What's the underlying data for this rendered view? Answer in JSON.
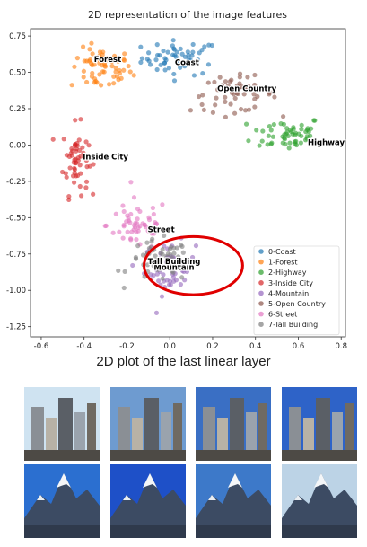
{
  "chart_data": {
    "type": "scatter",
    "title": "2D representation of the image features",
    "xlabel": "",
    "ylabel": "",
    "xlim": [
      -0.65,
      0.82
    ],
    "ylim": [
      -1.32,
      0.8
    ],
    "xticks": [
      "-0.6",
      "-0.4",
      "-0.2",
      "0.0",
      "0.2",
      "0.4",
      "0.6",
      "0.8"
    ],
    "xtick_values": [
      -0.6,
      -0.4,
      -0.2,
      0.0,
      0.2,
      0.4,
      0.6,
      0.8
    ],
    "yticks": [
      "0.75",
      "0.50",
      "0.25",
      "0.00",
      "-0.25",
      "-0.50",
      "-0.75",
      "-1.00",
      "-1.25"
    ],
    "ytick_values": [
      0.75,
      0.5,
      0.25,
      0.0,
      -0.25,
      -0.5,
      -0.75,
      -1.0,
      -1.25
    ],
    "grid": false,
    "legend_position": "bottom-right",
    "series": [
      {
        "name": "0-Coast",
        "color": "#1f77b4",
        "label": "Coast",
        "label_pos": [
          0.08,
          0.55
        ],
        "center": [
          0.05,
          0.6
        ],
        "spread": [
          0.15,
          0.1
        ],
        "n": 55
      },
      {
        "name": "1-Forest",
        "color": "#ff7f0e",
        "label": "Forest",
        "label_pos": [
          -0.29,
          0.57
        ],
        "center": [
          -0.32,
          0.52
        ],
        "spread": [
          0.12,
          0.12
        ],
        "n": 60
      },
      {
        "name": "2-Highway",
        "color": "#2ca02c",
        "label": "Highway",
        "label_pos": [
          0.73,
          0.0
        ],
        "center": [
          0.55,
          0.08
        ],
        "spread": [
          0.14,
          0.1
        ],
        "n": 55
      },
      {
        "name": "3-Inside City",
        "color": "#d62728",
        "label": "Inside City",
        "label_pos": [
          -0.3,
          -0.1
        ],
        "center": [
          -0.44,
          -0.1
        ],
        "spread": [
          0.05,
          0.2
        ],
        "n": 55
      },
      {
        "name": "4-Mountain",
        "color": "#9467bd",
        "label": "Mountain",
        "label_pos": [
          0.02,
          -0.86
        ],
        "center": [
          0.0,
          -0.85
        ],
        "spread": [
          0.1,
          0.15
        ],
        "n": 55
      },
      {
        "name": "5-Open Country",
        "color": "#8c564b",
        "label": "Open Country",
        "label_pos": [
          0.36,
          0.37
        ],
        "center": [
          0.3,
          0.35
        ],
        "spread": [
          0.17,
          0.1
        ],
        "n": 55
      },
      {
        "name": "6-Street",
        "color": "#e377c2",
        "label": "Street",
        "label_pos": [
          -0.04,
          -0.6
        ],
        "center": [
          -0.15,
          -0.55
        ],
        "spread": [
          0.12,
          0.15
        ],
        "n": 55
      },
      {
        "name": "7-Tall Building",
        "color": "#7f7f7f",
        "label": "Tall Building",
        "label_pos": [
          0.02,
          -0.82
        ],
        "center": [
          -0.05,
          -0.8
        ],
        "spread": [
          0.12,
          0.12
        ],
        "n": 55
      }
    ],
    "highlight_ellipse": {
      "cx": 0.11,
      "cy": -0.83,
      "rx": 0.23,
      "ry": 0.2,
      "color": "#e00000"
    }
  },
  "caption": "2D plot of the last linear layer",
  "thumbnails": [
    {
      "name": "thumb-city-1",
      "kind": "city",
      "sky": "#cfe3f1"
    },
    {
      "name": "thumb-city-2",
      "kind": "city",
      "sky": "#6e9bd0"
    },
    {
      "name": "thumb-city-3",
      "kind": "city",
      "sky": "#3a6fc4"
    },
    {
      "name": "thumb-city-4",
      "kind": "city",
      "sky": "#2e63c8"
    },
    {
      "name": "thumb-mountain-1",
      "kind": "mountain",
      "sky": "#2b6fd0"
    },
    {
      "name": "thumb-mountain-2",
      "kind": "mountain",
      "sky": "#1e50c8"
    },
    {
      "name": "thumb-mountain-3",
      "kind": "mountain",
      "sky": "#3d79c9"
    },
    {
      "name": "thumb-mountain-4",
      "kind": "mountain",
      "sky": "#bcd3e6"
    }
  ]
}
